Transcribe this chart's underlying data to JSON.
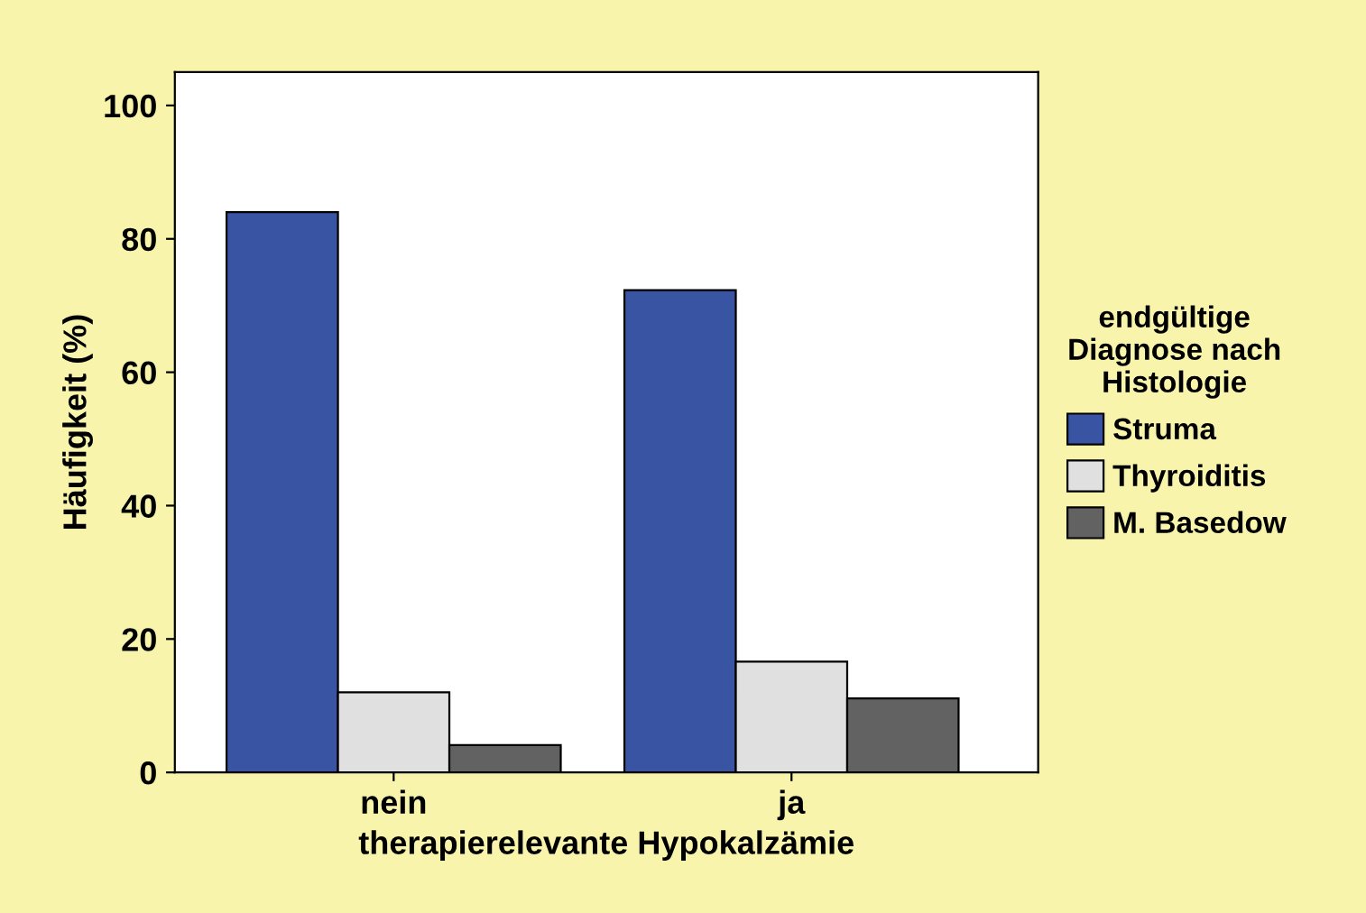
{
  "chart_data": {
    "type": "bar",
    "xlabel": "therapierelevante Hypokalzämie",
    "ylabel": "Häufigkeit (%)",
    "legend_title": "endgültige\nDiagnose nach\nHistologie",
    "categories": [
      "nein",
      "ja"
    ],
    "series": [
      {
        "name": "Struma",
        "color": "#3a54a4",
        "values": [
          84,
          72.3
        ]
      },
      {
        "name": "Thyroiditis",
        "color": "#e0e0e0",
        "values": [
          12,
          16.6
        ]
      },
      {
        "name": "M. Basedow",
        "color": "#626262",
        "values": [
          4.1,
          11.1
        ]
      }
    ],
    "ylim": [
      0,
      105
    ],
    "yticks": [
      0,
      20,
      40,
      60,
      80,
      100
    ],
    "grid": false,
    "legend": "right"
  }
}
